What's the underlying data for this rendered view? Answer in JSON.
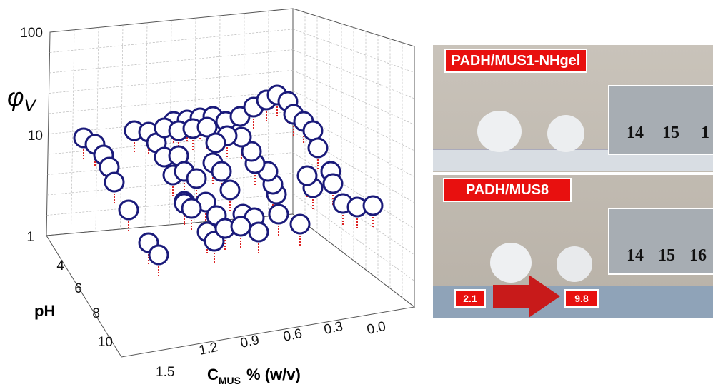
{
  "chart": {
    "z_label": "φ",
    "z_label_sub": "V",
    "z_ticks": [
      "1",
      "10",
      "100"
    ],
    "y_label": "pH",
    "y_ticks": [
      "4",
      "6",
      "8",
      "10"
    ],
    "x_label": "C",
    "x_label_sub": "MUS",
    "x_label_rest": "% (w/v)",
    "x_ticks": [
      "1.5",
      "1.2",
      "0.9",
      "0.6",
      "0.3",
      "0.0"
    ]
  },
  "photos": [
    {
      "label": "PADH/MUS1-NHgel",
      "ruler": [
        "14",
        "15",
        "1"
      ]
    },
    {
      "label": "PADH/MUS8",
      "ruler": [
        "14",
        "15",
        "16"
      ]
    }
  ],
  "arrow": {
    "from": "2.1",
    "to": "9.8"
  }
}
